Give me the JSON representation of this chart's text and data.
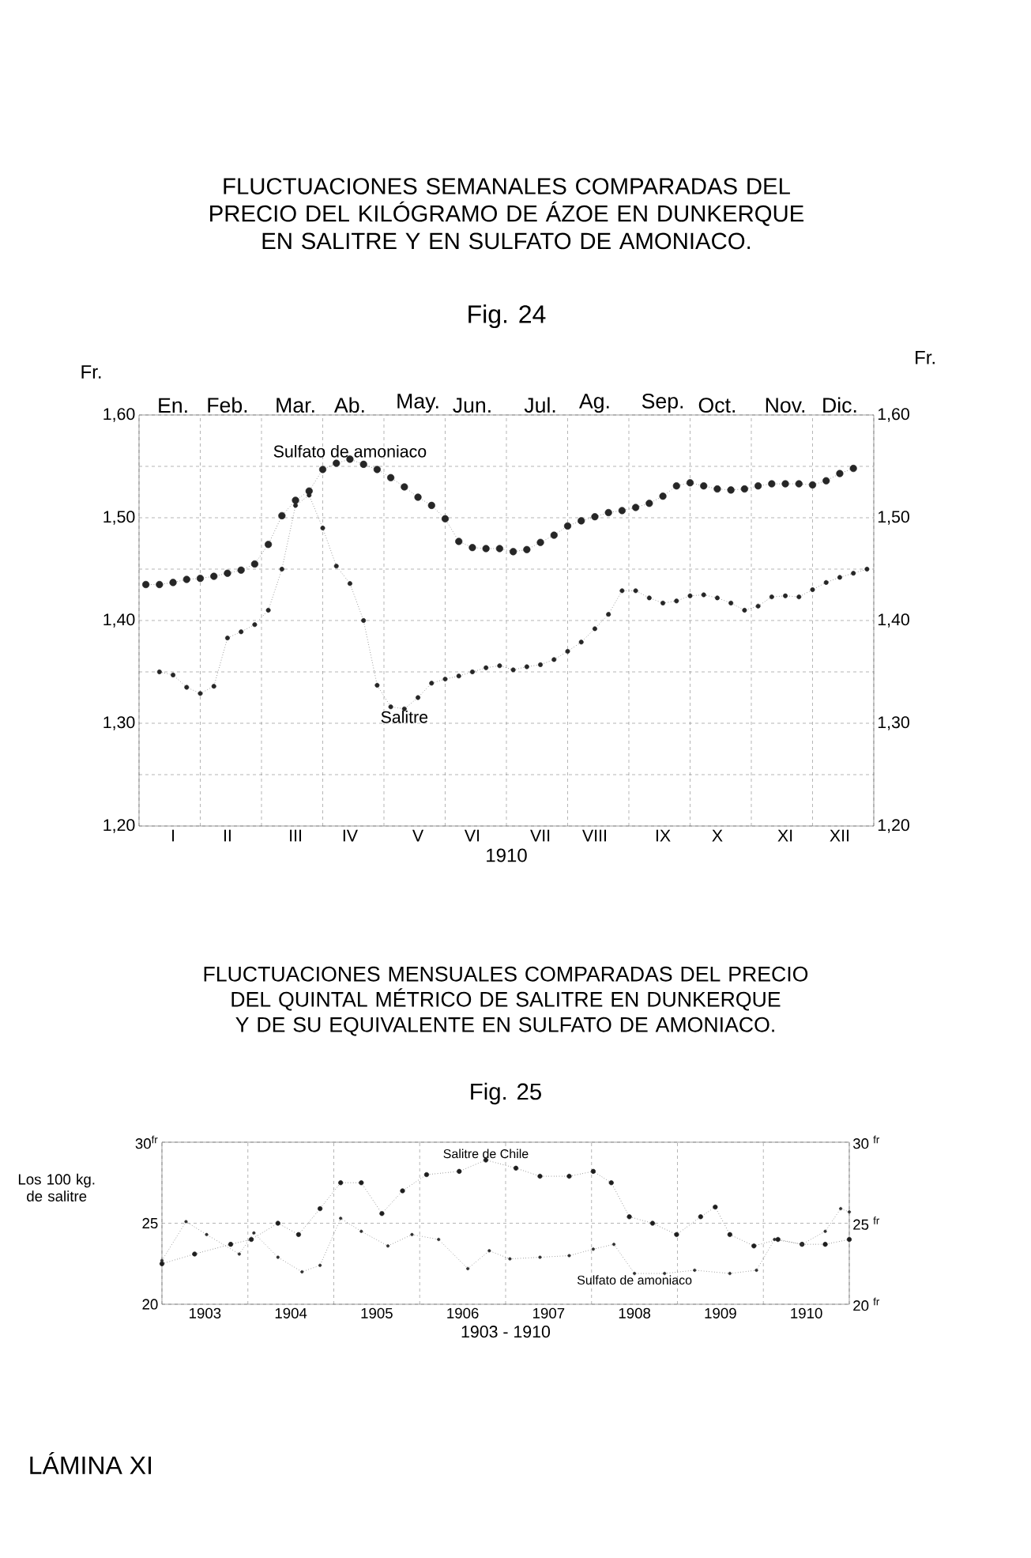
{
  "chart_data": [
    {
      "type": "line",
      "title": "FLUCTUACIONES SEMANALES COMPARADAS DEL PRECIO DEL KILÓGRAMO DE ÁZOE EN DUNKERQUE EN SALITRE Y EN SULFATO DE AMONIACO.",
      "subtitle": "Fig. 24",
      "xlabel": "1910",
      "ylabel": "Fr.",
      "y2label": "Fr.",
      "categories": [
        null,
        null,
        "I",
        null,
        null,
        null,
        "II",
        null,
        null,
        null,
        null,
        "III",
        null,
        null,
        null,
        "IV",
        null,
        null,
        null,
        null,
        "V",
        null,
        null,
        null,
        "VI",
        null,
        null,
        null,
        null,
        "VII",
        null,
        null,
        null,
        "VIII",
        null,
        null,
        null,
        null,
        "IX",
        null,
        null,
        null,
        "X",
        null,
        null,
        null,
        null,
        "XI",
        null,
        null,
        null,
        "XII",
        null,
        null
      ],
      "annotations": [
        "En.",
        "Feb.",
        "Mar.",
        "Ab.",
        "May.",
        "Jun.",
        "Jul.",
        "Ag.",
        "Sep.",
        "Oct.",
        "Nov.",
        "Dic."
      ],
      "ylim": [
        1.2,
        1.6
      ],
      "y2lim": [
        1.2,
        1.6
      ],
      "yticks": [
        {
          "value": 1.2,
          "label": "1,20"
        },
        {
          "value": 1.25,
          "label": null
        },
        {
          "value": 1.3,
          "label": "1,30"
        },
        {
          "value": 1.35,
          "label": null
        },
        {
          "value": 1.4,
          "label": "1,40"
        },
        {
          "value": 1.45,
          "label": null
        },
        {
          "value": 1.5,
          "label": "1,50"
        },
        {
          "value": 1.55,
          "label": null
        },
        {
          "value": 1.6,
          "label": "1,60"
        }
      ],
      "y2ticks": [
        {
          "value": 1.2,
          "label": "1,20"
        },
        {
          "value": 1.3,
          "label": "1,30"
        },
        {
          "value": 1.4,
          "label": "1,40"
        },
        {
          "value": 1.5,
          "label": "1,50"
        },
        {
          "value": 1.6,
          "label": "1,60"
        }
      ],
      "grid": true,
      "marker": "circle",
      "line_style": "dotted",
      "series": [
        {
          "name": "Sulfato de amoniaco",
          "color": "#262626",
          "values": [
            1.435,
            1.435,
            1.437,
            1.44,
            1.441,
            1.443,
            1.446,
            1.449,
            1.455,
            1.474,
            1.502,
            1.517,
            1.526,
            1.547,
            1.553,
            1.557,
            1.552,
            1.547,
            1.539,
            1.53,
            1.52,
            1.512,
            1.499,
            1.477,
            1.471,
            1.47,
            1.47,
            1.467,
            1.469,
            1.476,
            1.483,
            1.492,
            1.497,
            1.501,
            1.505,
            1.507,
            1.51,
            1.514,
            1.521,
            1.531,
            1.534,
            1.531,
            1.528,
            1.527,
            1.528,
            1.531,
            1.533,
            1.533,
            1.533,
            1.532,
            1.536,
            1.543,
            1.548,
            null
          ]
        },
        {
          "name": "Salitre",
          "color": "#262626",
          "values": [
            null,
            1.35,
            1.347,
            1.335,
            1.329,
            1.336,
            1.383,
            1.389,
            1.396,
            1.41,
            1.45,
            1.512,
            1.522,
            1.49,
            1.453,
            1.436,
            1.4,
            1.337,
            1.316,
            1.314,
            1.325,
            1.339,
            1.343,
            1.346,
            1.35,
            1.354,
            1.356,
            1.352,
            1.355,
            1.357,
            1.362,
            1.37,
            1.379,
            1.392,
            1.406,
            1.429,
            1.429,
            1.422,
            1.417,
            1.419,
            1.424,
            1.425,
            1.422,
            1.417,
            1.41,
            1.414,
            1.423,
            1.424,
            1.423,
            1.43,
            1.437,
            1.442,
            1.446,
            1.45
          ]
        }
      ]
    },
    {
      "type": "line",
      "title": "FLUCTUACIONES MENSUALES COMPARADAS DEL PRECIO DEL QUINTAL MÉTRICO DE SALITRE EN DUNKERQUE Y DE SU EQUIVALENTE EN SULFATO DE AMONIACO.",
      "subtitle": "Fig. 25",
      "xlabel": "1903 - 1910",
      "ylabel": "Los 100 kg. de salitre",
      "xlim": [
        1903,
        1911
      ],
      "ylim": [
        20,
        30
      ],
      "y2lim": [
        20,
        30
      ],
      "xticks": [
        {
          "value": 1903,
          "label": null
        },
        {
          "value": 1903.5,
          "label": "1903"
        },
        {
          "value": 1904,
          "label": null
        },
        {
          "value": 1904.5,
          "label": "1904"
        },
        {
          "value": 1905,
          "label": null
        },
        {
          "value": 1905.5,
          "label": "1905"
        },
        {
          "value": 1906,
          "label": null
        },
        {
          "value": 1906.5,
          "label": "1906"
        },
        {
          "value": 1907,
          "label": null
        },
        {
          "value": 1907.5,
          "label": "1907"
        },
        {
          "value": 1908,
          "label": null
        },
        {
          "value": 1908.5,
          "label": "1908"
        },
        {
          "value": 1909,
          "label": null
        },
        {
          "value": 1909.5,
          "label": "1909"
        },
        {
          "value": 1910,
          "label": null
        },
        {
          "value": 1910.5,
          "label": "1910"
        },
        {
          "value": 1911,
          "label": null
        }
      ],
      "yticks": [
        20,
        25,
        {
          "value": 30,
          "label": "30$^{fr}$"
        }
      ],
      "y2ticks": [
        {
          "value": 20,
          "label": "20 $^{fr}$"
        },
        {
          "value": 25,
          "label": "25 $^{fr}$"
        },
        {
          "value": 30,
          "label": "30 $^{fr}$"
        }
      ],
      "grid": true,
      "marker": "circle",
      "line_style": "dotted",
      "annotations": [
        "LÁMINA XI"
      ],
      "series": [
        {
          "name": "Salitre de Chile",
          "color": "#1e1e1e",
          "x": [
            1903.0,
            1903.38,
            1903.8,
            1904.04,
            1904.35,
            1904.59,
            1904.84,
            1905.08,
            1905.32,
            1905.56,
            1905.8,
            1906.08,
            1906.46,
            1906.77,
            1907.12,
            1907.4,
            1907.74,
            1908.02,
            1908.23,
            1908.44,
            1908.71,
            1908.99,
            1909.27,
            1909.44,
            1909.61,
            1909.89,
            1910.17,
            1910.45,
            1910.72,
            1911.0
          ],
          "values": [
            22.5,
            23.1,
            23.7,
            24.0,
            25.0,
            24.3,
            25.9,
            27.5,
            27.5,
            25.6,
            27.0,
            28.0,
            28.2,
            28.9,
            28.4,
            27.9,
            27.9,
            28.2,
            27.5,
            25.4,
            25.0,
            24.3,
            25.4,
            26.0,
            24.3,
            23.6,
            24.0,
            23.7,
            23.7,
            24.0
          ]
        },
        {
          "name": "Sulfato de amoniaco",
          "color": "#303030",
          "x": [
            1903.0,
            1903.28,
            1903.52,
            1903.9,
            1904.07,
            1904.35,
            1904.63,
            1904.84,
            1905.08,
            1905.32,
            1905.63,
            1905.91,
            1906.22,
            1906.56,
            1906.81,
            1907.05,
            1907.4,
            1907.74,
            1908.02,
            1908.26,
            1908.5,
            1908.85,
            1909.2,
            1909.61,
            1909.92,
            1910.13,
            1910.45,
            1910.72,
            1910.9,
            1911.0
          ],
          "values": [
            22.7,
            25.1,
            24.3,
            23.1,
            24.4,
            22.9,
            22.0,
            22.4,
            25.3,
            24.5,
            23.6,
            24.3,
            24.0,
            22.2,
            23.3,
            22.8,
            22.9,
            23.0,
            23.4,
            23.7,
            21.9,
            21.9,
            22.1,
            21.9,
            22.1,
            24.0,
            23.7,
            24.5,
            25.9,
            25.7
          ]
        }
      ]
    }
  ]
}
